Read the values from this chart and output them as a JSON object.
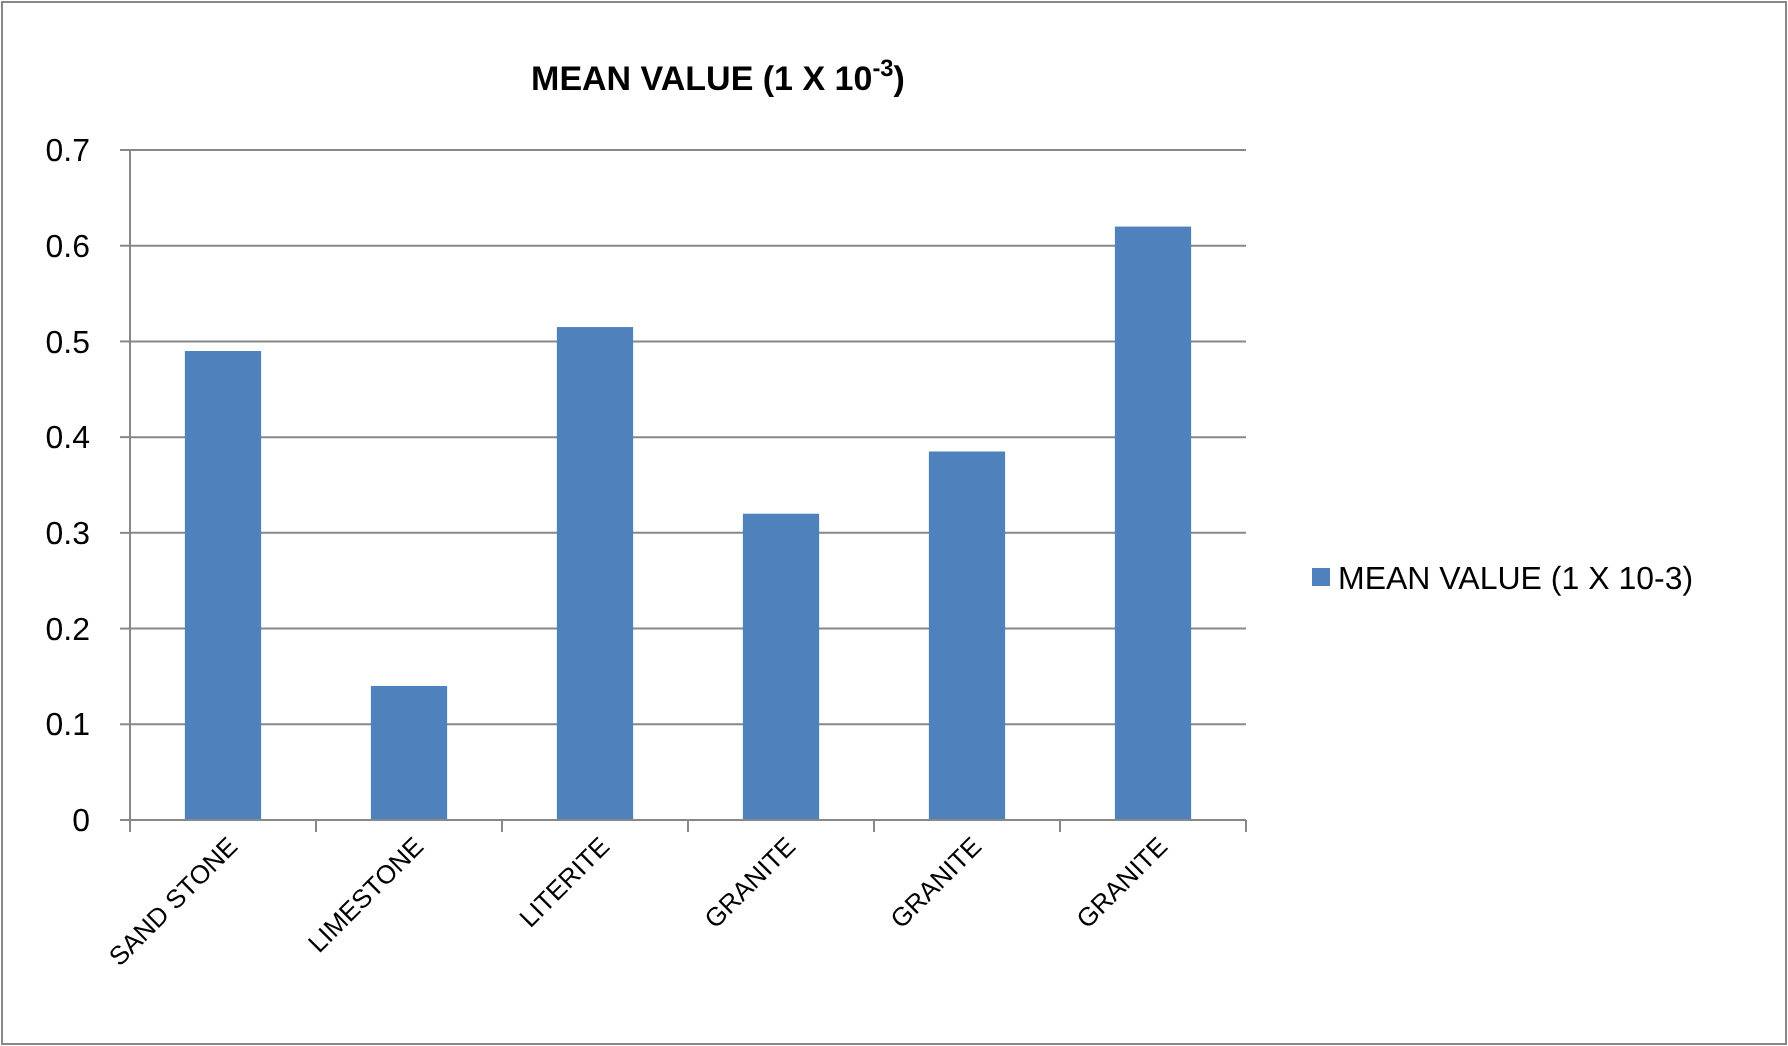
{
  "chart_data": {
    "type": "bar",
    "title": "MEAN VALUE (1 X 10$^{-3}$)",
    "categories": [
      "SAND STONE",
      "LIMESTONE",
      "LITERITE",
      "GRANITE",
      "GRANITE",
      "GRANITE"
    ],
    "series": [
      {
        "name": "MEAN VALUE (1 X 10-3)",
        "color": "#4f81bd",
        "values": [
          0.49,
          0.14,
          0.515,
          0.32,
          0.385,
          0.62
        ]
      }
    ],
    "ylim": [
      0,
      0.7
    ],
    "yticks": [
      0,
      0.1,
      0.2,
      0.3,
      0.4,
      0.5,
      0.6,
      0.7
    ],
    "grid": "y",
    "legend": "right"
  }
}
